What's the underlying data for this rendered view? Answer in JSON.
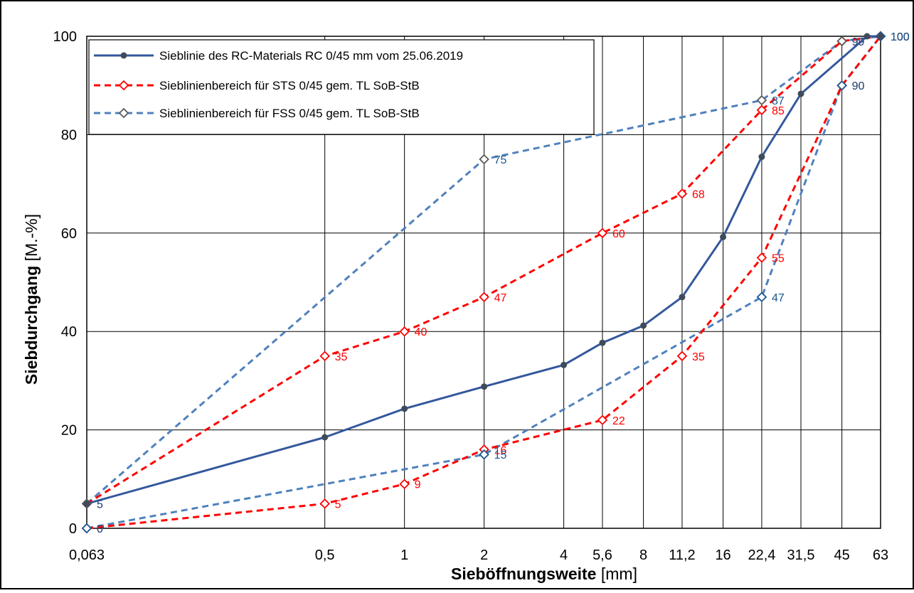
{
  "chart_data": {
    "type": "line",
    "xlabel_bold": "Sieböffnungsweite",
    "xlabel_unit": " [mm]",
    "ylabel_bold": "Siebdurchgang",
    "ylabel_unit": " [M.-%]",
    "ylim": [
      0,
      100
    ],
    "x_scale": "log",
    "grid": true,
    "legend_position": "top-left",
    "x_ticks": [
      "0,063",
      "0,5",
      "1",
      "2",
      "4",
      "5,6",
      "8",
      "11,2",
      "16",
      "22,4",
      "31,5",
      "45",
      "63"
    ],
    "x_tick_values": [
      0.063,
      0.5,
      1,
      2,
      4,
      5.6,
      8,
      11.2,
      16,
      22.4,
      31.5,
      45,
      63
    ],
    "y_ticks": [
      "0",
      "20",
      "40",
      "60",
      "80",
      "100"
    ],
    "y_tick_values": [
      0,
      20,
      40,
      60,
      80,
      100
    ],
    "series": [
      {
        "name": "Sieblinie des RC-Materials RC 0/45 mm vom 25.06.2019",
        "color": "#34589d",
        "style": "solid",
        "marker": "dot",
        "x": [
          0.063,
          0.5,
          1,
          2,
          4,
          5.6,
          8,
          11.2,
          16,
          22.4,
          31.5,
          56,
          63
        ],
        "values": [
          5,
          18.5,
          24.3,
          28.8,
          33.2,
          37.7,
          41.2,
          47,
          59.2,
          75.5,
          88.3,
          100,
          100
        ]
      },
      {
        "name": "Sieblinienbereich für STS 0/45 gem. TL SoB-StB",
        "color": "#ff0000",
        "style": "dashed",
        "marker": "diamond",
        "lower": {
          "x": [
            0.063,
            0.5,
            1,
            2,
            5.6,
            11.2,
            22.4,
            45,
            63
          ],
          "values": [
            0,
            5,
            9,
            16,
            22,
            35,
            55,
            90,
            100
          ],
          "labels": [
            "0",
            "5",
            "9",
            "16",
            "22",
            "35",
            "55",
            "90",
            "100"
          ]
        },
        "upper": {
          "x": [
            0.063,
            0.5,
            1,
            2,
            5.6,
            11.2,
            22.4,
            45,
            63
          ],
          "values": [
            5,
            35,
            40,
            47,
            60,
            68,
            85,
            99,
            100
          ],
          "labels": [
            "5",
            "35",
            "40",
            "47",
            "60",
            "68",
            "85",
            "99",
            "100"
          ]
        }
      },
      {
        "name": "Sieblinienbereich für FSS 0/45 gem. TL SoB-StB",
        "color": "#4f81bd",
        "label_color": "#17568f",
        "style": "dashed",
        "marker": "diamond",
        "lower": {
          "x": [
            0.063,
            2,
            22.4,
            45,
            63
          ],
          "values": [
            0,
            15,
            47,
            90,
            100
          ],
          "labels": [
            "0",
            "15",
            "47",
            "90",
            "100"
          ]
        },
        "upper": {
          "x": [
            0.063,
            2,
            22.4,
            45,
            63
          ],
          "values": [
            5,
            75,
            87,
            99,
            100
          ],
          "labels": [
            "5",
            "75",
            "87",
            "99",
            "100"
          ]
        }
      }
    ]
  }
}
